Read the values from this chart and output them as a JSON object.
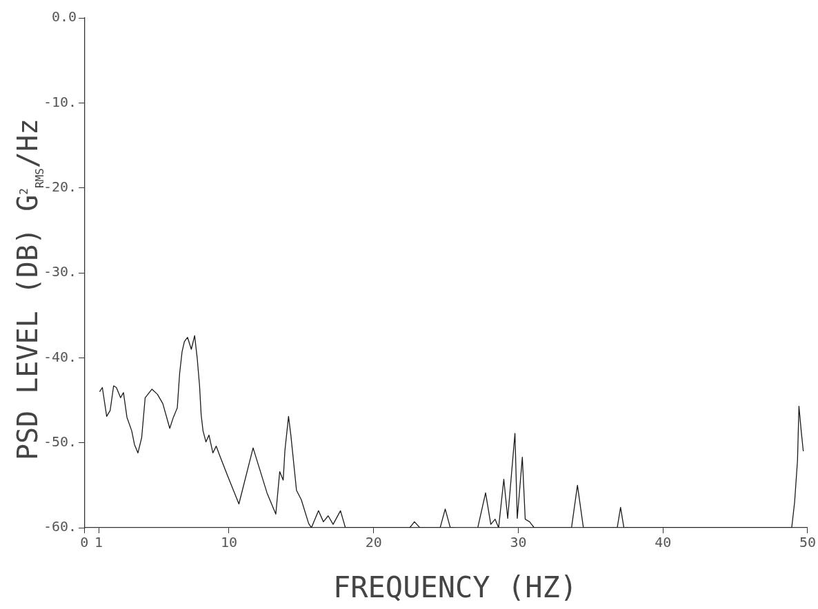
{
  "chart_data": {
    "type": "line",
    "xlabel": "FREQUENCY (HZ)",
    "ylabel": "PSD LEVEL (DB) G$^{2}$$_{RMS}$/Hz",
    "xlim": [
      0,
      50
    ],
    "xticks": [
      0,
      1,
      10,
      20,
      30,
      40,
      50
    ],
    "ylim": [
      -60,
      0
    ],
    "yticks": [
      {
        "value": 0,
        "label": "0.0"
      },
      {
        "value": -10,
        "label": "-10."
      },
      {
        "value": -20,
        "label": "-20."
      },
      {
        "value": -30,
        "label": "-30."
      },
      {
        "value": -40,
        "label": "-40."
      },
      {
        "value": -50,
        "label": "-50."
      },
      {
        "value": -60,
        "label": "-60."
      }
    ],
    "grid": false,
    "legend": false,
    "marker": "none",
    "line_style": "solid",
    "series": [
      {
        "color": "#1a1a1a",
        "x": [
          1.06,
          1.25,
          1.55,
          1.79,
          2.03,
          2.22,
          2.51,
          2.71,
          2.95,
          3.28,
          3.47,
          3.71,
          3.97,
          4.21,
          4.68,
          5.06,
          5.43,
          5.91,
          6.16,
          6.43,
          6.59,
          6.76,
          6.92,
          7.14,
          7.4,
          7.63,
          7.81,
          7.97,
          8.08,
          8.21,
          8.41,
          8.62,
          8.89,
          9.12,
          9.34,
          9.91,
          10.69,
          11.67,
          12.63,
          13.24,
          13.51,
          13.75,
          13.87,
          14.12,
          14.28,
          14.67,
          15.0,
          15.51,
          15.7,
          16.19,
          16.53,
          16.86,
          17.2,
          17.71,
          18.05,
          22.5,
          22.82,
          23.2,
          24.6,
          24.95,
          25.3,
          25.6,
          26.2,
          27.2,
          27.74,
          28.1,
          28.4,
          28.64,
          29.0,
          29.27,
          29.77,
          29.93,
          30.28,
          30.48,
          30.78,
          31.1,
          33.68,
          34.09,
          34.5,
          36.84,
          37.07,
          37.3,
          48.9,
          49.1,
          49.3,
          49.4,
          49.55,
          49.7
        ],
        "values": [
          -44.0,
          -43.5,
          -46.9,
          -46.2,
          -43.3,
          -43.5,
          -44.7,
          -44.1,
          -47.0,
          -48.6,
          -50.2,
          -51.2,
          -49.4,
          -44.7,
          -43.7,
          -44.3,
          -45.4,
          -48.3,
          -47.0,
          -45.9,
          -41.9,
          -39.3,
          -38.1,
          -37.6,
          -39.0,
          -37.4,
          -40.1,
          -43.3,
          -46.7,
          -48.6,
          -49.9,
          -49.1,
          -51.2,
          -50.4,
          -51.4,
          -53.9,
          -57.2,
          -50.6,
          -55.9,
          -58.4,
          -53.4,
          -54.4,
          -50.9,
          -46.9,
          -49.1,
          -55.6,
          -56.7,
          -59.5,
          -60,
          -58.0,
          -59.3,
          -58.6,
          -59.6,
          -58.0,
          -60,
          -60,
          -59.3,
          -60,
          -60,
          -57.8,
          -60,
          -60,
          null,
          -60,
          -55.9,
          -59.6,
          -59.0,
          -60,
          -54.3,
          -58.9,
          -48.9,
          -58.9,
          -51.7,
          -59.0,
          -59.3,
          -60,
          -60,
          -55.0,
          -60,
          -60,
          -57.6,
          -60,
          -60,
          -57.0,
          -52.1,
          -45.7,
          -48.5,
          -51.0
        ]
      }
    ]
  }
}
